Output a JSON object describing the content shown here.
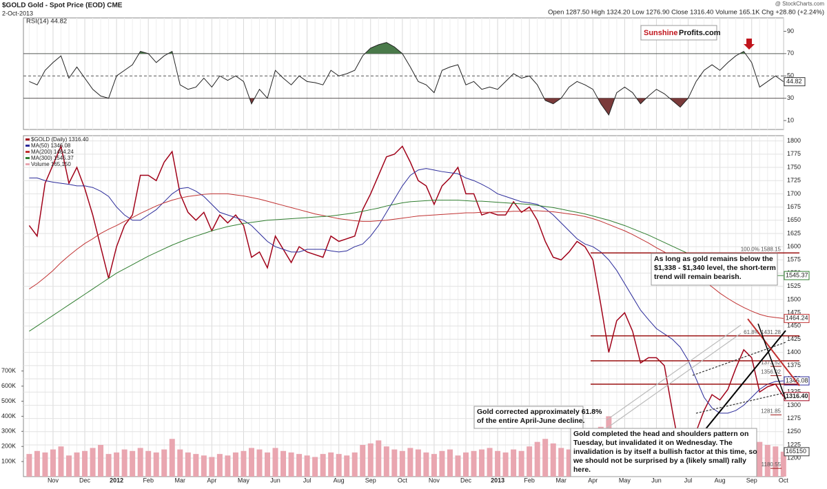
{
  "header": {
    "title": "$GOLD Gold - Spot Price (EOD) CME",
    "date": "2-Oct-2013",
    "quote": "Open 1287.50  High 1324.20  Low 1276.90  Close 1316.40  Volume 165.1K  Chg +28.80 (+2.24%)",
    "credit": "@ StockCharts.com",
    "logo_a": "Sunshine",
    "logo_b": "Profits.com"
  },
  "annotations": [
    {
      "lines": [
        "As long as gold remains below the",
        "$1,338 - $1,340 level, the short-term",
        "trend will remain bearish."
      ]
    },
    {
      "lines": [
        "Gold corrected approximately 61.8%",
        "of the entire April-June decline."
      ]
    },
    {
      "lines": [
        "Gold completed the head and shoulders pattern on",
        "Tuesday, but invalidated it on Wednesday. The",
        "invalidation is by itself a bullish factor at this time, so",
        "we should not be surprised by a (likely small) rally",
        "here."
      ]
    }
  ],
  "chart_data": [
    {
      "type": "line",
      "title": "RSI(14) 44.82",
      "color": "#222222",
      "above_color": "#4a7a4a",
      "below_color": "#7a3a3a",
      "ylim": [
        2,
        102
      ],
      "yticks": [
        10,
        30,
        50,
        70,
        90
      ],
      "hlines": [
        70,
        50,
        30
      ],
      "values": [
        45,
        42,
        55,
        62,
        68,
        48,
        58,
        48,
        38,
        32,
        30,
        50,
        55,
        60,
        72,
        70,
        62,
        68,
        72,
        42,
        38,
        40,
        48,
        40,
        50,
        46,
        50,
        45,
        25,
        38,
        30,
        55,
        48,
        42,
        50,
        45,
        44,
        42,
        55,
        50,
        52,
        55,
        68,
        75,
        78,
        80,
        76,
        70,
        58,
        45,
        42,
        35,
        55,
        58,
        60,
        42,
        45,
        38,
        40,
        38,
        45,
        52,
        48,
        50,
        42,
        28,
        25,
        30,
        40,
        45,
        42,
        38,
        25,
        15,
        35,
        40,
        35,
        25,
        32,
        38,
        34,
        28,
        22,
        30,
        45,
        55,
        60,
        55,
        62,
        68,
        72,
        62,
        40,
        45,
        50,
        44.82
      ]
    },
    {
      "type": "line",
      "grid": true,
      "categories": [
        null,
        null,
        null,
        "Nov",
        null,
        null,
        null,
        "Dec",
        null,
        null,
        null,
        "2012",
        null,
        null,
        null,
        "Feb",
        null,
        null,
        null,
        "Mar",
        null,
        null,
        null,
        "Apr",
        null,
        null,
        null,
        "May",
        null,
        null,
        null,
        "Jun",
        null,
        null,
        null,
        "Jul",
        null,
        null,
        null,
        "Aug",
        null,
        null,
        null,
        "Sep",
        null,
        null,
        null,
        "Oct",
        null,
        null,
        null,
        "Nov",
        null,
        null,
        null,
        "Dec",
        null,
        null,
        null,
        "2013",
        null,
        null,
        null,
        "Feb",
        null,
        null,
        null,
        "Mar",
        null,
        null,
        null,
        "Apr",
        null,
        null,
        null,
        "May",
        null,
        null,
        null,
        "Jun",
        null,
        null,
        null,
        "Jul",
        null,
        null,
        null,
        "Aug",
        null,
        null,
        null,
        "Sep",
        null,
        null,
        null,
        "Oct"
      ],
      "ylim": [
        1165,
        1810
      ],
      "yticks": [
        1200,
        1225,
        1250,
        1275,
        1300,
        1325,
        1350,
        1375,
        1400,
        1425,
        1450,
        1475,
        1500,
        1525,
        1550,
        1575,
        1600,
        1625,
        1650,
        1675,
        1700,
        1725,
        1750,
        1775,
        1800
      ],
      "y2lim": [
        0,
        2260000
      ],
      "y2ticks": [
        {
          "value": 100000,
          "label": "100K"
        },
        {
          "value": 200000,
          "label": "200K"
        },
        {
          "value": 300000,
          "label": "300K"
        },
        {
          "value": 400000,
          "label": "400K"
        },
        {
          "value": 500000,
          "label": "500K"
        },
        {
          "value": 600000,
          "label": "600K"
        },
        {
          "value": 700000,
          "label": "700K"
        }
      ],
      "levels": [
        1588.15,
        1431.28,
        1384,
        1340
      ],
      "level_labels": [
        {
          "value": 1588.15,
          "label": "100.0% 1588.15"
        },
        {
          "value": 1431.28,
          "label": "61.8% 1431.28"
        },
        {
          "value": 1373.52,
          "label": "1373.52"
        },
        {
          "value": 1356.02,
          "label": "1356.02"
        },
        {
          "value": 1281.85,
          "label": "1281.85"
        },
        {
          "value": 1180.55,
          "label": "1180.55"
        }
      ],
      "series": [
        {
          "name": "$GOLD (Daily) 1316.40",
          "color": "#a00018",
          "values": [
            1640,
            1620,
            1720,
            1755,
            1790,
            1720,
            1750,
            1710,
            1660,
            1600,
            1540,
            1600,
            1640,
            1660,
            1735,
            1735,
            1725,
            1760,
            1780,
            1700,
            1665,
            1650,
            1665,
            1630,
            1660,
            1645,
            1660,
            1640,
            1580,
            1590,
            1560,
            1620,
            1595,
            1570,
            1600,
            1590,
            1585,
            1580,
            1620,
            1610,
            1615,
            1620,
            1670,
            1700,
            1735,
            1770,
            1775,
            1790,
            1760,
            1725,
            1715,
            1680,
            1715,
            1730,
            1750,
            1700,
            1700,
            1660,
            1665,
            1660,
            1660,
            1685,
            1665,
            1675,
            1650,
            1610,
            1580,
            1575,
            1590,
            1610,
            1600,
            1575,
            1490,
            1400,
            1460,
            1475,
            1440,
            1380,
            1390,
            1390,
            1375,
            1290,
            1210,
            1230,
            1250,
            1290,
            1320,
            1310,
            1330,
            1370,
            1405,
            1390,
            1325,
            1335,
            1340,
            1316.4
          ],
          "value_labels": [
            null,
            null,
            null,
            null,
            null,
            null,
            null,
            null,
            null,
            null,
            null,
            null,
            null,
            null,
            null,
            null,
            null,
            null,
            null,
            null,
            null,
            null,
            null,
            null,
            null,
            null,
            null,
            null,
            null,
            null,
            null,
            null,
            null,
            null,
            null,
            null,
            null,
            null,
            null,
            null,
            null,
            null,
            null,
            null,
            null,
            null,
            null,
            null,
            null,
            null,
            null,
            null,
            null,
            null,
            null,
            null,
            null,
            null,
            null,
            null,
            null,
            null,
            null,
            null,
            null,
            null,
            null,
            null,
            null,
            null,
            null,
            null,
            null,
            null,
            null,
            null,
            null,
            null,
            null,
            null,
            null,
            null,
            null,
            null,
            null,
            null,
            null,
            null,
            null,
            null,
            null,
            null,
            null,
            null,
            null,
            "1316.40"
          ]
        },
        {
          "name": "MA(50) 1346.08",
          "color": "#2a2a9a",
          "values": [
            1730,
            1730,
            1725,
            1722,
            1720,
            1718,
            1715,
            1715,
            1712,
            1705,
            1695,
            1675,
            1660,
            1650,
            1650,
            1660,
            1670,
            1685,
            1700,
            1710,
            1712,
            1705,
            1695,
            1680,
            1665,
            1660,
            1655,
            1650,
            1640,
            1625,
            1610,
            1600,
            1595,
            1590,
            1590,
            1595,
            1595,
            1595,
            1592,
            1590,
            1592,
            1600,
            1605,
            1620,
            1640,
            1665,
            1690,
            1715,
            1735,
            1745,
            1748,
            1745,
            1742,
            1740,
            1738,
            1730,
            1725,
            1718,
            1710,
            1700,
            1695,
            1690,
            1685,
            1683,
            1680,
            1672,
            1660,
            1645,
            1630,
            1615,
            1605,
            1600,
            1590,
            1575,
            1555,
            1530,
            1505,
            1480,
            1462,
            1445,
            1435,
            1425,
            1410,
            1385,
            1350,
            1315,
            1295,
            1285,
            1285,
            1290,
            1300,
            1315,
            1330,
            1340,
            1345,
            1346.08
          ]
        },
        {
          "name": "MA(200) 1464.24",
          "color": "#c03030",
          "values": [
            1520,
            1530,
            1542,
            1555,
            1570,
            1583,
            1595,
            1606,
            1615,
            1625,
            1633,
            1640,
            1648,
            1655,
            1663,
            1670,
            1677,
            1683,
            1688,
            1692,
            1695,
            1697,
            1699,
            1700,
            1700,
            1700,
            1698,
            1696,
            1693,
            1690,
            1686,
            1682,
            1678,
            1674,
            1670,
            1666,
            1662,
            1659,
            1656,
            1653,
            1651,
            1649,
            1648,
            1648,
            1649,
            1650,
            1652,
            1654,
            1656,
            1658,
            1659,
            1660,
            1661,
            1662,
            1663,
            1664,
            1664,
            1665,
            1665,
            1666,
            1666,
            1667,
            1667,
            1668,
            1668,
            1667,
            1666,
            1664,
            1662,
            1660,
            1657,
            1653,
            1648,
            1642,
            1636,
            1630,
            1623,
            1615,
            1607,
            1598,
            1590,
            1580,
            1570,
            1558,
            1546,
            1535,
            1524,
            1512,
            1502,
            1493,
            1485,
            1478,
            1472,
            1468,
            1466,
            1464.24
          ]
        },
        {
          "name": "MA(300) 1545.37",
          "color": "#2e7d2e",
          "values": [
            1440,
            1450,
            1460,
            1470,
            1480,
            1490,
            1500,
            1510,
            1520,
            1530,
            1540,
            1550,
            1558,
            1566,
            1574,
            1582,
            1589,
            1596,
            1603,
            1609,
            1615,
            1620,
            1625,
            1630,
            1634,
            1638,
            1641,
            1644,
            1646,
            1648,
            1650,
            1651,
            1652,
            1653,
            1654,
            1655,
            1656,
            1657,
            1658,
            1660,
            1662,
            1664,
            1667,
            1670,
            1673,
            1677,
            1680,
            1683,
            1685,
            1686,
            1687,
            1688,
            1688,
            1688,
            1688,
            1687,
            1686,
            1686,
            1685,
            1684,
            1683,
            1682,
            1681,
            1680,
            1678,
            1676,
            1674,
            1671,
            1668,
            1665,
            1662,
            1658,
            1654,
            1650,
            1645,
            1640,
            1634,
            1628,
            1622,
            1615,
            1608,
            1601,
            1594,
            1587,
            1580,
            1574,
            1568,
            1563,
            1558,
            1554,
            1550,
            1548,
            1547,
            1546,
            1545.5,
            1545.37
          ]
        },
        {
          "name": "Volume 165,150",
          "type": "bar",
          "axis": "y2",
          "color": "#e9a6b0",
          "values": [
            150000,
            170000,
            160000,
            180000,
            200000,
            140000,
            160000,
            170000,
            190000,
            210000,
            150000,
            160000,
            180000,
            170000,
            190000,
            170000,
            160000,
            180000,
            250000,
            180000,
            160000,
            150000,
            140000,
            130000,
            150000,
            140000,
            160000,
            170000,
            190000,
            180000,
            160000,
            190000,
            170000,
            160000,
            150000,
            140000,
            130000,
            150000,
            160000,
            150000,
            140000,
            160000,
            210000,
            220000,
            240000,
            200000,
            180000,
            170000,
            190000,
            180000,
            160000,
            150000,
            170000,
            180000,
            140000,
            160000,
            170000,
            180000,
            190000,
            170000,
            160000,
            180000,
            170000,
            200000,
            230000,
            250000,
            220000,
            190000,
            180000,
            200000,
            190000,
            260000,
            330000,
            400000,
            250000,
            230000,
            210000,
            240000,
            220000,
            250000,
            230000,
            300000,
            280000,
            260000,
            240000,
            230000,
            220000,
            210000,
            230000,
            250000,
            240000,
            260000,
            230000,
            210000,
            200000,
            165150
          ]
        }
      ]
    }
  ]
}
